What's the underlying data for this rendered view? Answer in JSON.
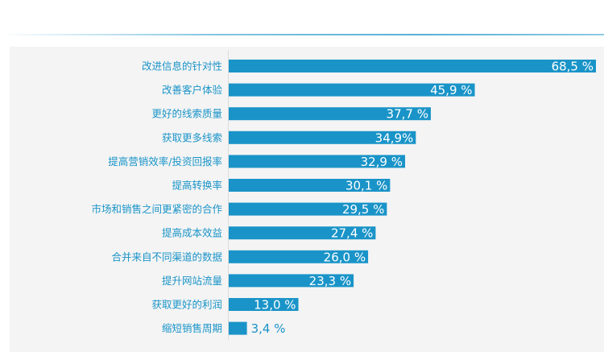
{
  "chart_data": {
    "type": "bar",
    "orientation": "horizontal",
    "title": "",
    "xlabel": "",
    "ylabel": "",
    "xlim": [
      0,
      68.5
    ],
    "grid": false,
    "legend": "none",
    "categories": [
      "改进信息的针对性",
      "改善客户体验",
      "更好的线索质量",
      "获取更多线索",
      "提高营销效率/投资回报率",
      "提高转换率",
      "市场和销售之间更紧密的合作",
      "提高成本效益",
      "合并来自不同渠道的数据",
      "提升网站流量",
      "获取更好的利润",
      "缩短销售周期"
    ],
    "values": [
      68.5,
      45.9,
      37.7,
      34.9,
      32.9,
      30.1,
      29.5,
      27.4,
      26.0,
      23.3,
      13.0,
      3.4
    ],
    "value_labels": [
      "68,5 %",
      "45,9 %",
      "37,7 %",
      "34,9%",
      "32,9 %",
      "30,1 %",
      "29,5 %",
      "27,4 %",
      "26,0 %",
      "23,3 %",
      "13,0 %",
      "3,4 %"
    ],
    "colors": {
      "bar": "#1a94c8",
      "category_text": "#1a94c8",
      "value_text_inside": "#ffffff",
      "value_text_outside": "#1a94c8"
    }
  }
}
